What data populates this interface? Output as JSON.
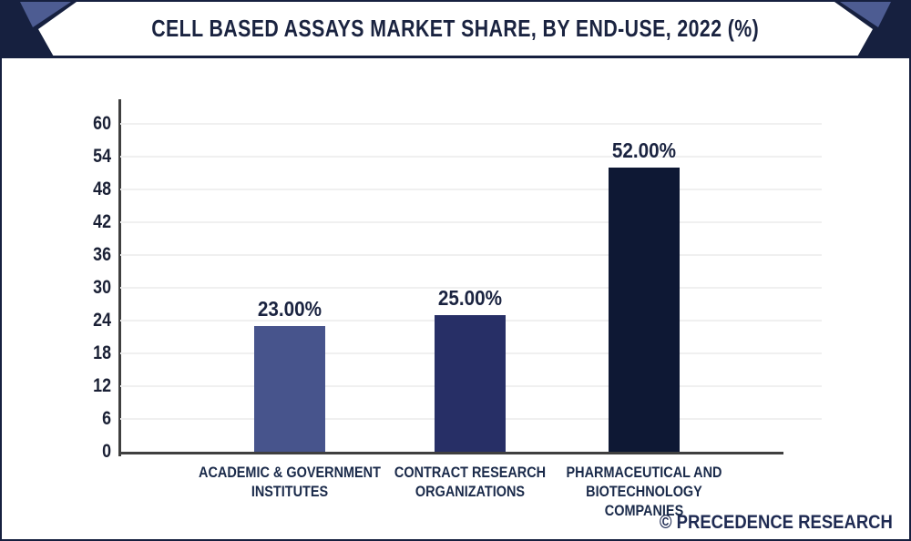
{
  "header": {
    "title": "CELL BASED ASSAYS MARKET SHARE, BY END-USE, 2022 (%)"
  },
  "watermark": {
    "text": "© PRECEDENCE RESEARCH"
  },
  "colors": {
    "header_dark_navy": "#16203f",
    "header_light_blue": "#4d5c92",
    "title_text": "#1a2340",
    "axis_line": "#3f3f3f",
    "gridline": "#f0f0f0",
    "tick_text": "#1a2035",
    "category_text": "#1a2a4a",
    "watermark_text": "#1e2a52"
  },
  "chart_data": {
    "type": "bar",
    "title": "CELL BASED ASSAYS MARKET SHARE, BY END-USE, 2022 (%)",
    "categories": [
      "ACADEMIC & GOVERNMENT INSTITUTES",
      "CONTRACT RESEARCH ORGANIZATIONS",
      "PHARMACEUTICAL AND BIOTECHNOLOGY COMPANIES"
    ],
    "values": [
      23,
      25,
      52
    ],
    "value_labels": [
      "23.00%",
      "25.00%",
      "52.00%"
    ],
    "bar_colors": [
      "#47548c",
      "#272f66",
      "#0e1834"
    ],
    "yticks": [
      0,
      6,
      12,
      18,
      24,
      30,
      36,
      42,
      48,
      54,
      60
    ],
    "ylim": [
      0,
      64.5
    ],
    "xlabel": "",
    "ylabel": "",
    "unit": "%",
    "grid": "horizontal",
    "legend": "none"
  }
}
